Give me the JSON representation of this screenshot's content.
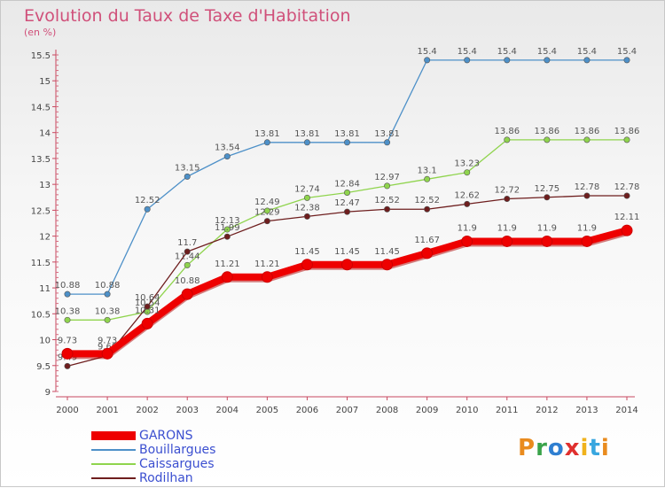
{
  "title": "Evolution du Taux de Taxe d'Habitation",
  "unit_label": "(en %)",
  "brand": {
    "text": "Proxiti",
    "colors": [
      "#e98b1e",
      "#3aa34a",
      "#2f7fd1",
      "#e0302e",
      "#f0b21c",
      "#38a6df",
      "#e98b1e"
    ]
  },
  "chart_data": {
    "type": "line",
    "x": [
      2000,
      2001,
      2002,
      2003,
      2004,
      2005,
      2006,
      2007,
      2008,
      2009,
      2010,
      2011,
      2012,
      2013,
      2014
    ],
    "ylim": [
      9,
      15.5
    ],
    "yticks": [
      9,
      9.5,
      10,
      10.5,
      11,
      11.5,
      12,
      12.5,
      13,
      13.5,
      14,
      14.5,
      15,
      15.5
    ],
    "grid": false,
    "legend_position": "bottom-left",
    "series": [
      {
        "name": "GARONS",
        "color": "#ee0000",
        "values": [
          9.73,
          9.73,
          10.31,
          10.88,
          11.21,
          11.21,
          11.45,
          11.45,
          11.45,
          11.67,
          11.9,
          11.9,
          11.9,
          11.9,
          12.11
        ]
      },
      {
        "name": "Bouillargues",
        "color": "#4d90c8",
        "values": [
          10.88,
          10.88,
          12.52,
          13.15,
          13.54,
          13.81,
          13.81,
          13.81,
          13.81,
          15.4,
          15.4,
          15.4,
          15.4,
          15.4,
          15.4
        ]
      },
      {
        "name": "Caissargues",
        "color": "#8fd44d",
        "values": [
          10.38,
          10.38,
          10.54,
          11.44,
          12.13,
          12.49,
          12.74,
          12.84,
          12.97,
          13.1,
          13.23,
          13.86,
          13.86,
          13.86,
          13.86
        ]
      },
      {
        "name": "Rodilhan",
        "color": "#6e1e1e",
        "values": [
          9.49,
          9.69,
          10.64,
          11.7,
          11.99,
          12.29,
          12.38,
          12.47,
          12.52,
          12.52,
          12.62,
          12.72,
          12.75,
          12.78,
          12.78
        ]
      }
    ]
  }
}
